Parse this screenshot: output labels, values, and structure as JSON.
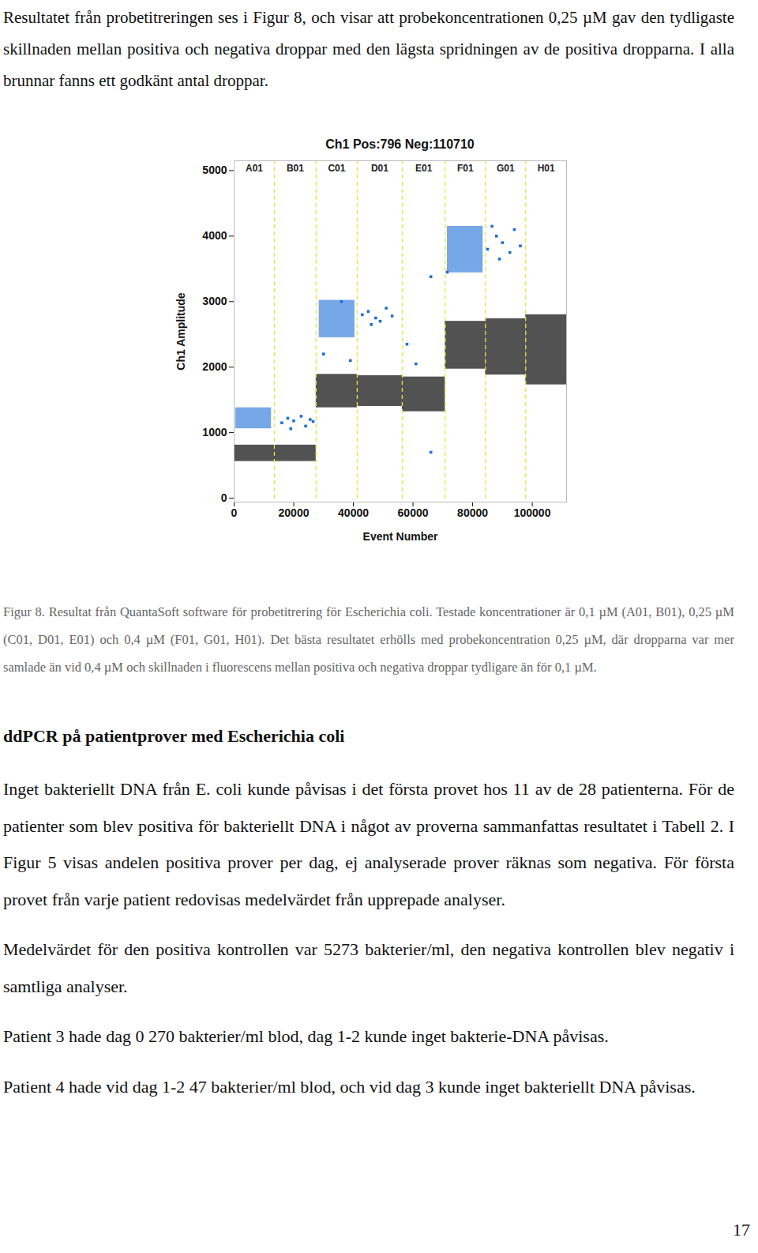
{
  "intro": "Resultatet från probetitreringen ses i Figur 8, och visar att probekoncentrationen 0,25 µM gav den tydligaste skillnaden mellan positiva och negativa droppar med den lägsta spridningen av de positiva dropparna. I alla brunnar fanns ett godkänt antal droppar.",
  "chart_data": {
    "type": "scatter",
    "title": "Ch1 Pos:796 Neg:110710",
    "x_label": "Event Number",
    "y_label": "Ch1 Amplitude",
    "xlim": [
      0,
      111500
    ],
    "xticks": [
      0,
      20000,
      40000,
      60000,
      80000,
      100000
    ],
    "ylim": [
      -60,
      5150
    ],
    "yticks": [
      0,
      1000,
      2000,
      3000,
      4000,
      5000
    ],
    "grid": false,
    "well_line_color": "#e4e43a",
    "wells": [
      {
        "name": "A01",
        "start": 0,
        "end": 13500
      },
      {
        "name": "B01",
        "start": 13500,
        "end": 27500
      },
      {
        "name": "C01",
        "start": 27500,
        "end": 41300
      },
      {
        "name": "D01",
        "start": 41300,
        "end": 56400
      },
      {
        "name": "E01",
        "start": 56400,
        "end": 70800
      },
      {
        "name": "F01",
        "start": 70800,
        "end": 84300
      },
      {
        "name": "G01",
        "start": 84300,
        "end": 97800
      },
      {
        "name": "H01",
        "start": 97800,
        "end": 111500
      }
    ],
    "negative": {
      "color": "#3a3a3a",
      "bands": [
        {
          "well": "A01",
          "low": 560,
          "high": 810
        },
        {
          "well": "B01",
          "low": 560,
          "high": 810
        },
        {
          "well": "C01",
          "low": 1380,
          "high": 1890
        },
        {
          "well": "D01",
          "low": 1400,
          "high": 1870
        },
        {
          "well": "E01",
          "low": 1320,
          "high": 1850
        },
        {
          "well": "F01",
          "low": 1970,
          "high": 2700
        },
        {
          "well": "G01",
          "low": 1880,
          "high": 2740
        },
        {
          "well": "H01",
          "low": 1730,
          "high": 2800
        }
      ]
    },
    "positive": {
      "color": "#1a6ed8",
      "clusters": [
        {
          "well": "A01",
          "start": 500,
          "end": 12500,
          "low": 1060,
          "high": 1380
        },
        {
          "well": "C01",
          "start": 28500,
          "end": 40500,
          "low": 2450,
          "high": 3020
        },
        {
          "well": "F01",
          "start": 71500,
          "end": 83500,
          "low": 3440,
          "high": 4150
        }
      ],
      "droplets": [
        [
          16000,
          1150
        ],
        [
          18000,
          1220
        ],
        [
          19000,
          1060
        ],
        [
          20000,
          1180
        ],
        [
          22500,
          1250
        ],
        [
          24000,
          1100
        ],
        [
          25500,
          1200
        ],
        [
          26500,
          1170
        ],
        [
          30000,
          2200
        ],
        [
          36000,
          3000
        ],
        [
          39000,
          2100
        ],
        [
          43000,
          2800
        ],
        [
          45000,
          2850
        ],
        [
          46000,
          2650
        ],
        [
          47500,
          2750
        ],
        [
          49000,
          2700
        ],
        [
          51000,
          2900
        ],
        [
          53000,
          2780
        ],
        [
          58000,
          2350
        ],
        [
          61000,
          2050
        ],
        [
          66000,
          700
        ],
        [
          66000,
          3380
        ],
        [
          71500,
          3450
        ],
        [
          85000,
          3800
        ],
        [
          86500,
          4150
        ],
        [
          88000,
          4000
        ],
        [
          89000,
          3650
        ],
        [
          90000,
          3900
        ],
        [
          92500,
          3750
        ],
        [
          94000,
          4100
        ],
        [
          96000,
          3850
        ]
      ]
    }
  },
  "caption": "Figur 8. Resultat från QuantaSoft software för probetitrering för Escherichia coli. Testade koncentrationer är 0,1 µM (A01, B01), 0,25 µM (C01, D01, E01) och 0,4 µM (F01, G01, H01). Det bästa resultatet erhölls med probekoncentration 0,25 µM, där dropparna var mer samlade än vid 0,4 µM och skillnaden i fluorescens mellan positiva och negativa droppar tydligare än för 0,1 µM.",
  "section": {
    "heading": "ddPCR på patientprover med Escherichia coli",
    "paragraphs": [
      "Inget bakteriellt DNA från E. coli kunde påvisas i det första provet hos 11 av de 28 patienterna. För de patienter som blev positiva för bakteriellt DNA i något av proverna sammanfattas resultatet i Tabell 2. I Figur 5 visas andelen positiva prover per dag, ej analyserade prover räknas som negativa. För första provet från varje patient redovisas medelvärdet från upprepade analyser.",
      "Medelvärdet för den positiva kontrollen var 5273 bakterier/ml, den negativa kontrollen blev negativ i samtliga analyser.",
      "Patient 3 hade dag 0 270 bakterier/ml blod, dag 1-2 kunde inget bakterie-DNA påvisas.",
      "Patient 4 hade vid dag 1-2 47 bakterier/ml blod, och vid dag 3 kunde inget bakteriellt DNA påvisas."
    ]
  },
  "page_number": 17
}
